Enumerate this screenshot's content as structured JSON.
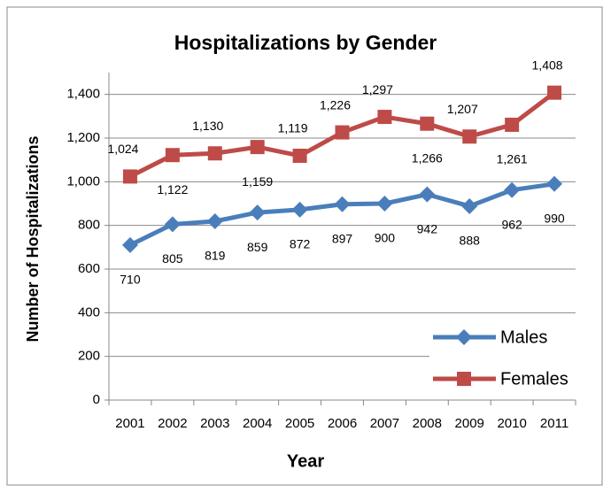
{
  "chart_data": {
    "type": "line",
    "title": "Hospitalizations by Gender",
    "x_label": "Year",
    "y_label": "Number of Hospitalizations",
    "categories": [
      "2001",
      "2002",
      "2003",
      "2004",
      "2005",
      "2006",
      "2007",
      "2008",
      "2009",
      "2010",
      "2011"
    ],
    "series": [
      {
        "name": "Males",
        "color": "#4a7ebb",
        "marker": "diamond",
        "values": [
          710,
          805,
          819,
          859,
          872,
          897,
          900,
          942,
          888,
          962,
          990
        ]
      },
      {
        "name": "Females",
        "color": "#be4b48",
        "marker": "square",
        "values": [
          1024,
          1122,
          1130,
          1159,
          1119,
          1226,
          1297,
          1266,
          1207,
          1261,
          1408
        ],
        "value_labels": [
          "1,024",
          "1,122",
          "1,130",
          "1,159",
          "1,119",
          "1,226",
          "1,297",
          "1,266",
          "1,207",
          "1,261",
          "1,408"
        ]
      }
    ],
    "ylim": [
      0,
      1500
    ],
    "yticks": [
      0,
      200,
      400,
      600,
      800,
      {
        "value": 1000,
        "label": "1,000"
      },
      {
        "value": 1200,
        "label": "1,200"
      },
      {
        "value": 1400,
        "label": "1,400"
      }
    ],
    "grid": true,
    "legend": "lower right"
  }
}
